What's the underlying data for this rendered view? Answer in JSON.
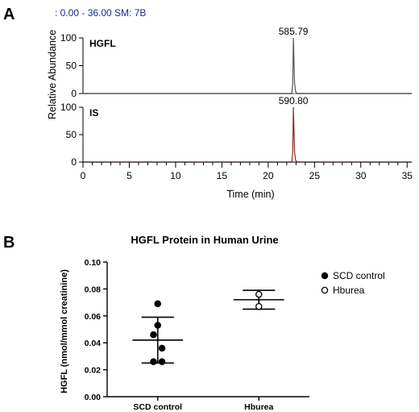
{
  "panel_a": {
    "letter": "A",
    "header": ": 0.00 - 36.00   SM: 7B",
    "y_axis_title": "Relative Abundance",
    "x_axis_title": "Time (min)"
  },
  "panel_b": {
    "letter": "B"
  },
  "chart_data": [
    {
      "type": "line",
      "title": "",
      "xlabel": "Time (min)",
      "ylabel": "Relative Abundance",
      "xlim": [
        0,
        35.5
      ],
      "ylim": [
        0,
        100
      ],
      "x_ticks": [
        "0",
        "1",
        "2",
        "3",
        "4",
        "5",
        "6",
        "7",
        "8",
        "9",
        "10",
        "11",
        "12",
        "13",
        "14",
        "15",
        "16",
        "17",
        "18",
        "19",
        "20",
        "21",
        "22",
        "23",
        "24",
        "25",
        "26",
        "27",
        "28",
        "29",
        "30",
        "31",
        "32",
        "33",
        "34",
        "35"
      ],
      "x_tick_labels": [
        "0",
        "5",
        "10",
        "15",
        "20",
        "25",
        "30",
        "35"
      ],
      "y_tick_labels": [
        "0",
        "50",
        "100"
      ],
      "series": [
        {
          "name": "HGFL",
          "peak_label": "585.79",
          "color": "#555555",
          "x": [
            0,
            22.55,
            22.65,
            22.72,
            22.78,
            22.85,
            22.95,
            23.1,
            35.5
          ],
          "y": [
            0,
            0,
            20,
            100,
            60,
            18,
            4,
            0,
            0
          ]
        },
        {
          "name": "IS",
          "peak_label": "590.80",
          "color": "#8b2a2a",
          "x": [
            0,
            22.55,
            22.65,
            22.72,
            22.78,
            22.85,
            22.95,
            23.1,
            35.5
          ],
          "y": [
            0,
            0,
            20,
            100,
            60,
            18,
            4,
            0,
            0
          ]
        }
      ]
    },
    {
      "type": "scatter",
      "title": "HGFL Protein in Human Urine",
      "xlabel": "",
      "ylabel": "HGFL (nmol/mmol creatinine)",
      "ylim": [
        0,
        0.1
      ],
      "y_tick_labels": [
        "0.00",
        "0.02",
        "0.04",
        "0.06",
        "0.08",
        "0.10"
      ],
      "categories": [
        "SCD control",
        "Hburea"
      ],
      "legend_position": "top-right",
      "series": [
        {
          "name": "SCD control",
          "marker": "filled-circle",
          "values": [
            0.069,
            0.053,
            0.046,
            0.036,
            0.026,
            0.026
          ],
          "offsets": [
            0.0,
            0.0,
            -0.3,
            0.3,
            -0.3,
            0.3
          ],
          "mean": 0.042,
          "sd_upper": 0.059,
          "sd_lower": 0.025
        },
        {
          "name": "Hburea",
          "marker": "open-circle",
          "values": [
            0.076,
            0.067
          ],
          "offsets": [
            0.0,
            0.0
          ],
          "mean": 0.072,
          "sd_upper": 0.079,
          "sd_lower": 0.065
        }
      ]
    }
  ]
}
